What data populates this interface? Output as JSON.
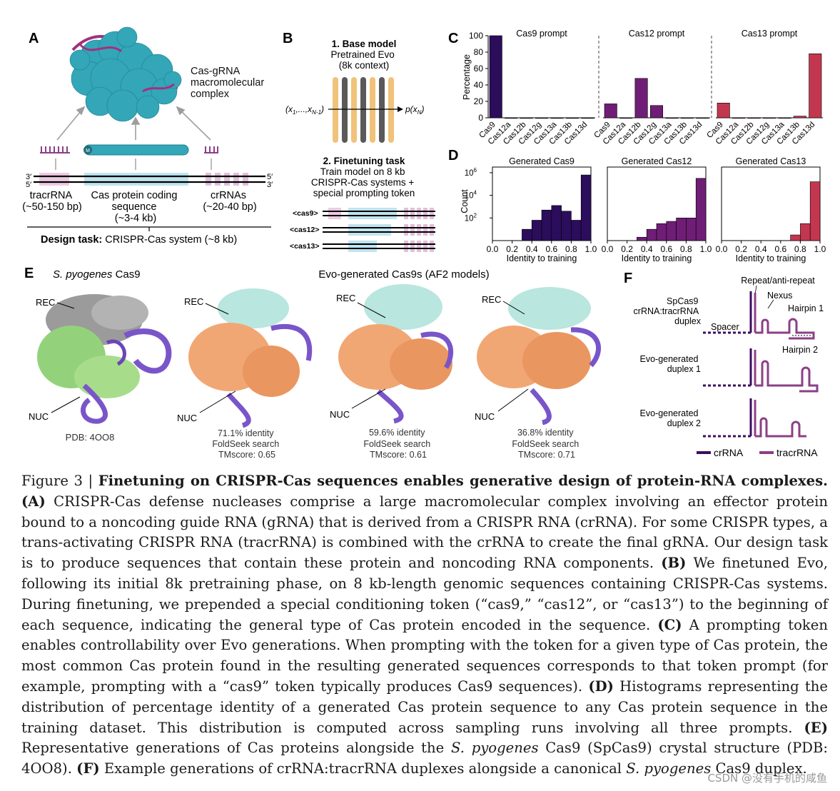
{
  "panels": {
    "A": {
      "letter": "A",
      "complex_label": [
        "Cas-gRNA",
        "macromolecular",
        "complex"
      ],
      "strand_ends": {
        "three_left": "3′",
        "five_left": "5′",
        "five_right": "5′",
        "three_right": "3′"
      },
      "protein_m": "M",
      "tracr_label": [
        "tracrRNA",
        "(~50-150 bp)"
      ],
      "coding_label": [
        "Cas protein coding",
        "sequence",
        "(~3-4 kb)"
      ],
      "crrna_label": [
        "crRNAs",
        "(~20-40 bp)"
      ],
      "design_task_bold": "Design task:",
      "design_task_rest": " CRISPR-Cas system (~8 kb)"
    },
    "B": {
      "letter": "B",
      "base_title": "1. Base model",
      "base_lines": [
        "Pretrained Evo",
        "(8k context)"
      ],
      "input_label": "(x",
      "input_sub1": "1",
      "input_mid": ",...,x",
      "input_sub2": "N-1",
      "input_close": ")",
      "output_label": "p(x",
      "output_sub": "N",
      "output_close": ")",
      "finetune_title": "2. Finetuning task",
      "finetune_lines": [
        "Train model on 8 kb",
        "CRISPR-Cas systems +",
        "special prompting token"
      ],
      "tokens": [
        "<cas9>",
        "<cas12>",
        "<cas13>"
      ]
    },
    "C": {
      "letter": "C",
      "ylabel": "Percentage",
      "yticks": [
        "100",
        "80",
        "60",
        "40",
        "20",
        "0"
      ]
    },
    "D": {
      "letter": "D",
      "ylabel": "Count",
      "ytick_base": "10",
      "ytick_exp": [
        "6",
        "4",
        "2"
      ],
      "xlabel": "Identity to training",
      "xticks": [
        "0.0",
        "0.2",
        "0.4",
        "0.6",
        "0.8",
        "1.0"
      ]
    },
    "E": {
      "letter": "E",
      "spy_italic": "S. pyogenes",
      "spy_rest": " Cas9",
      "evo_title": "Evo-generated Cas9s (AF2 models)",
      "rec": "REC",
      "nuc": "NUC",
      "pdb": "PDB: 4OO8",
      "models": [
        {
          "identity": "71.1% identity",
          "search": "FoldSeek search",
          "tm": "TMscore: 0.65"
        },
        {
          "identity": "59.6% identity",
          "search": "FoldSeek search",
          "tm": "TMscore: 0.61"
        },
        {
          "identity": "36.8% identity",
          "search": "FoldSeek search",
          "tm": "TMscore: 0.71"
        }
      ]
    },
    "F": {
      "letter": "F",
      "rows": [
        [
          "SpCas9",
          "crRNA:tracrRNA",
          "duplex"
        ],
        [
          "Evo-generated",
          "duplex 1"
        ],
        [
          "Evo-generated",
          "duplex 2"
        ]
      ],
      "annotations": {
        "repeat": "Repeat/anti-repeat",
        "nexus": "Nexus",
        "hairpin1": "Hairpin 1",
        "spacer": "Spacer",
        "hairpin2": "Hairpin 2"
      },
      "legend": [
        "crRNA",
        "tracrRNA"
      ],
      "colors": {
        "crrna": "#3b0f5e",
        "tracrrna": "#8c3f86"
      }
    }
  },
  "chart_data": [
    {
      "type": "bar",
      "panel": "C",
      "title": "Cas9 prompt",
      "categories": [
        "Cas9",
        "Cas12a",
        "Cas12b",
        "Cas12g",
        "Cas13a",
        "Cas13b",
        "Cas13d"
      ],
      "values": [
        100,
        0,
        0,
        0,
        0,
        0,
        0
      ],
      "ylabel": "Percentage",
      "ylim": [
        0,
        100
      ],
      "color": "#2b0d5c"
    },
    {
      "type": "bar",
      "panel": "C",
      "title": "Cas12 prompt",
      "categories": [
        "Cas9",
        "Cas12a",
        "Cas12b",
        "Cas12g",
        "Cas13a",
        "Cas13b",
        "Cas13d"
      ],
      "values": [
        17,
        0,
        48,
        15,
        0,
        0,
        0
      ],
      "ylim": [
        0,
        100
      ],
      "color": "#6f1e76"
    },
    {
      "type": "bar",
      "panel": "C",
      "title": "Cas13 prompt",
      "categories": [
        "Cas9",
        "Cas12a",
        "Cas12b",
        "Cas12g",
        "Cas13a",
        "Cas13b",
        "Cas13d"
      ],
      "values": [
        18,
        0,
        0,
        0,
        0,
        2,
        78
      ],
      "ylim": [
        0,
        100
      ],
      "color": "#c2374f"
    },
    {
      "type": "bar",
      "panel": "D",
      "title": "Generated Cas9",
      "x": [
        0.35,
        0.45,
        0.55,
        0.65,
        0.75,
        0.85,
        0.95
      ],
      "values": [
        1.0,
        1.8,
        2.7,
        3.1,
        2.6,
        1.8,
        5.8
      ],
      "xlabel": "Identity to training",
      "ylabel": "Count",
      "xlim": [
        0,
        1
      ],
      "ylim_log10": [
        0,
        6.5
      ],
      "color": "#2b0d5c"
    },
    {
      "type": "bar",
      "panel": "D",
      "title": "Generated Cas12",
      "x": [
        0.35,
        0.45,
        0.55,
        0.65,
        0.75,
        0.85,
        0.95
      ],
      "values": [
        0.3,
        1.0,
        1.5,
        1.7,
        2.0,
        2.0,
        5.5
      ],
      "xlabel": "Identity to training",
      "xlim": [
        0,
        1
      ],
      "ylim_log10": [
        0,
        6.5
      ],
      "color": "#6f1e76"
    },
    {
      "type": "bar",
      "panel": "D",
      "title": "Generated Cas13",
      "x": [
        0.75,
        0.85,
        0.95
      ],
      "values": [
        0.5,
        1.5,
        5.2
      ],
      "xlabel": "Identity to training",
      "xlim": [
        0,
        1
      ],
      "ylim_log10": [
        0,
        6.5
      ],
      "color": "#c2374f"
    }
  ],
  "caption": {
    "figure_label": "Figure 3 | ",
    "title": "Finetuning on CRISPR-Cas sequences enables generative design of protein-RNA complexes.",
    "A_label": "(A)",
    "A_text": " CRISPR-Cas defense nucleases comprise a large macromolecular complex involving an effector protein bound to a noncoding guide RNA (gRNA) that is derived from a CRISPR RNA (crRNA). For some CRISPR types, a trans-activating CRISPR RNA (tracrRNA) is combined with the crRNA to create the final gRNA. Our design task is to produce sequences that contain these protein and noncoding RNA components. ",
    "B_label": "(B)",
    "B_text": " We finetuned Evo, following its initial 8k pretraining phase, on 8 kb-length genomic sequences containing CRISPR-Cas systems. During finetuning, we prepended a special conditioning token (“cas9,” “cas12”, or “cas13”) to the beginning of each sequence, indicating the general type of Cas protein encoded in the sequence. ",
    "C_label": "(C)",
    "C_text": " A prompting token enables controllability over Evo generations. When prompting with the token for a given type of Cas protein, the most common Cas protein found in the resulting generated sequences corresponds to that token prompt (for example, prompting with a “cas9” token typically produces Cas9 sequences). ",
    "D_label": "(D)",
    "D_text": " Histograms representing the distribution of percentage identity of a generated Cas protein sequence to any Cas protein sequence in the training dataset.  This distribution is computed across sampling runs involving all three prompts. ",
    "E_label": "(E)",
    "E_text": " Representative generations of Cas proteins alongside the ",
    "E_italic": "S. pyogenes",
    "E_text2": " Cas9 (SpCas9) crystal structure (PDB: 4OO8). ",
    "F_label": "(F)",
    "F_text": " Example generations of crRNA:tracrRNA duplexes alongside a canonical ",
    "F_italic": "S. pyogenes",
    "F_text2": " Cas9 duplex."
  },
  "watermark": "CSDN @没有手机的咸鱼"
}
